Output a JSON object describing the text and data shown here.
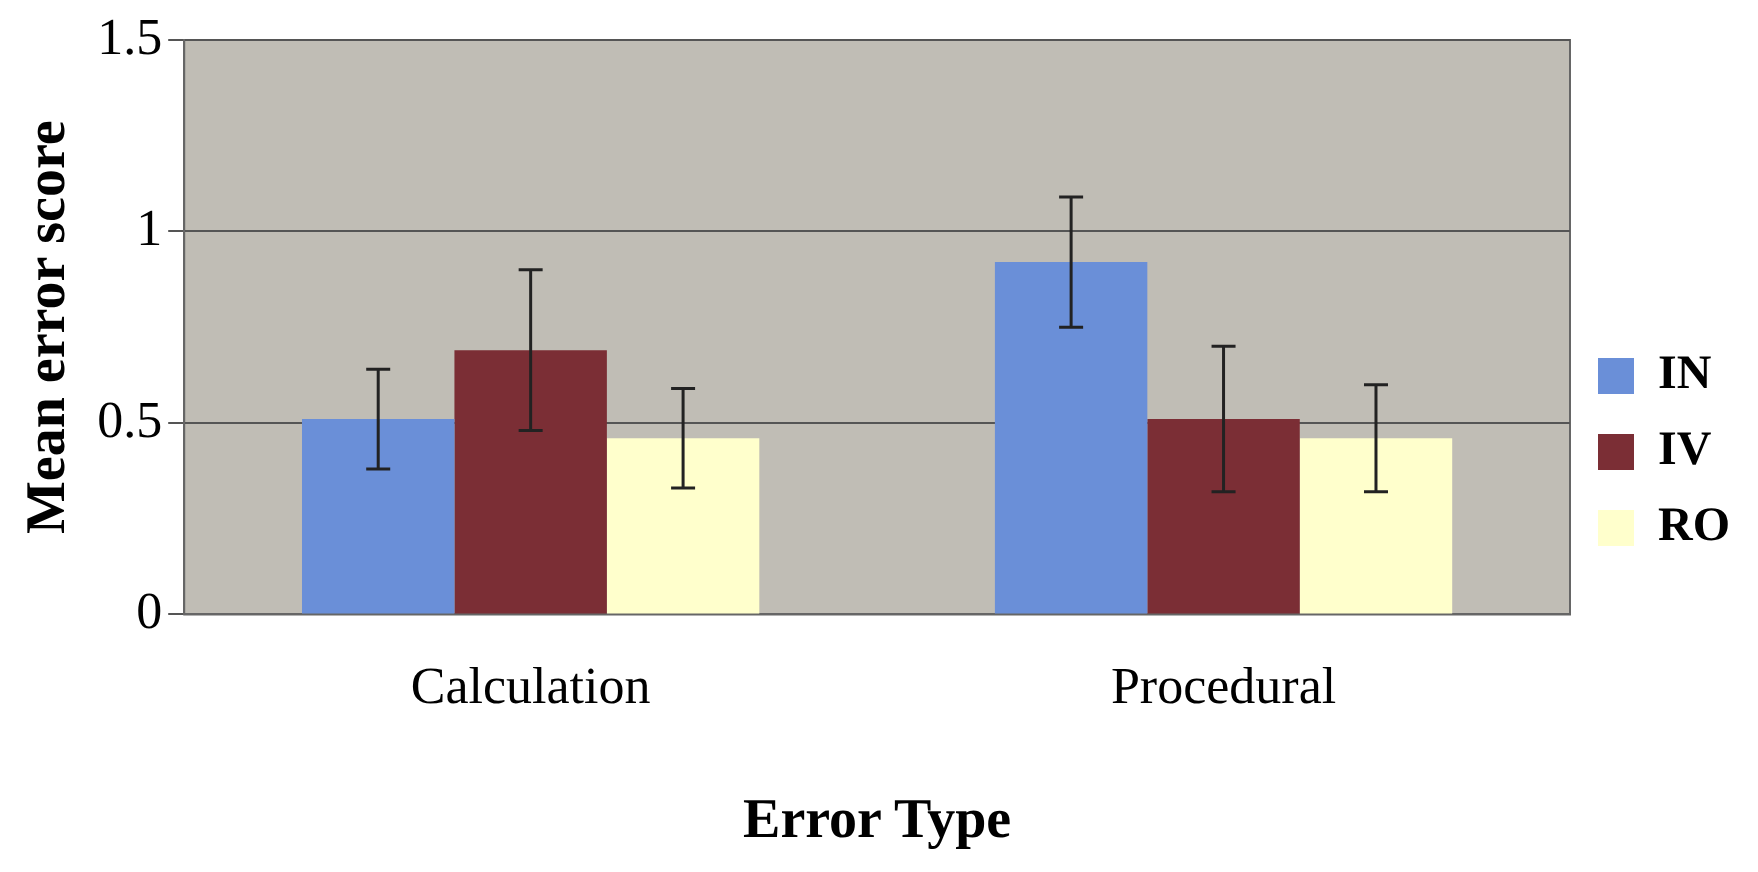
{
  "chart_data": {
    "type": "bar",
    "xlabel": "Error Type",
    "ylabel": "Mean error score",
    "categories": [
      "Calculation",
      "Procedural"
    ],
    "series": [
      {
        "name": "IN",
        "color": "#6a8fd8",
        "values": [
          0.51,
          0.92
        ],
        "errors": [
          0.13,
          0.17
        ]
      },
      {
        "name": "IV",
        "color": "#7b2e35",
        "values": [
          0.69,
          0.51
        ],
        "errors": [
          0.21,
          0.19
        ]
      },
      {
        "name": "RO",
        "color": "#ffffcc",
        "values": [
          0.46,
          0.46
        ],
        "errors": [
          0.13,
          0.14
        ]
      }
    ],
    "ylim": [
      0,
      1.5
    ],
    "yticks": [
      0,
      0.5,
      1,
      1.5
    ],
    "grid": "y",
    "legend": "right"
  }
}
